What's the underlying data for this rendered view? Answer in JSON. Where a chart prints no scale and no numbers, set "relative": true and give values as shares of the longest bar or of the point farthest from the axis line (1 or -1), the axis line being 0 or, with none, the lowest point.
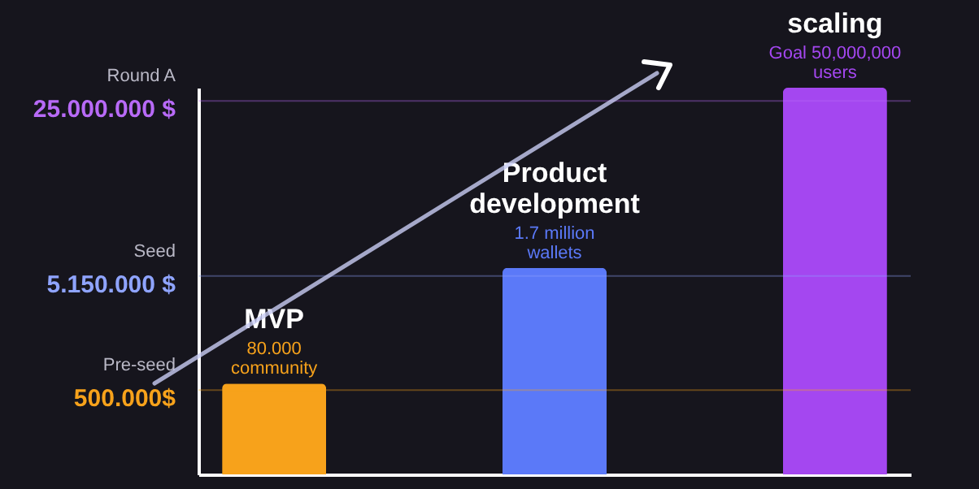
{
  "chart_data": {
    "type": "bar",
    "relative": true,
    "tick_labels": false,
    "legend": false,
    "categories": [
      "MVP",
      "Product\ndevelopment",
      "scaling"
    ],
    "values": [
      0.235,
      0.534,
      1
    ],
    "colors": [
      "#f7a21b",
      "#5b79f8",
      "#a447f0"
    ],
    "annotations": [
      {
        "text": "80.000\ncommunity",
        "x": "MVP",
        "y": 0.235
      },
      {
        "text": "1.7 million\nwallets",
        "x": "Product\ndevelopment",
        "y": 0.534
      },
      {
        "text": "Goal 50,000,000\nusers",
        "x": "scaling",
        "y": 1
      }
    ],
    "ref_lines": [
      {
        "axis": "y",
        "value": 0.218,
        "label": "Pre-seed\n500.000$",
        "color": "#f7a21b"
      },
      {
        "axis": "y",
        "value": 0.513,
        "label": "Seed\n5.150.000 $",
        "color": "#8fa4ff"
      },
      {
        "axis": "y",
        "value": 0.966,
        "label": "Round A\n25.000.000 $",
        "color": "#b86af7"
      }
    ]
  }
}
